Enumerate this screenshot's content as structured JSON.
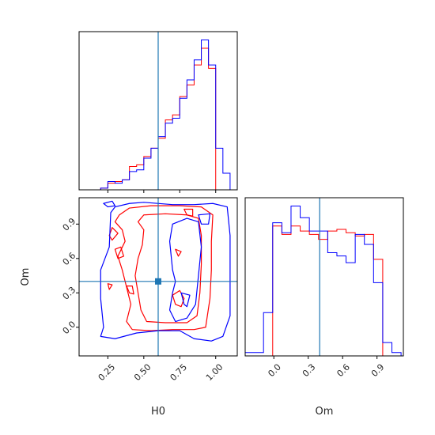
{
  "chart_data": {
    "type": "corner",
    "parameters": [
      "H0",
      "Om"
    ],
    "truths": {
      "H0": 0.6,
      "Om": 0.4,
      "color": "#1f77b4"
    },
    "series_colors": {
      "run_a": "#ff0000",
      "run_b": "#0000ff"
    },
    "axes": {
      "H0": {
        "range": [
          0.05,
          1.15
        ],
        "ticks": [
          0.25,
          0.5,
          0.75,
          1.0
        ],
        "tick_labels": [
          "0.25",
          "0.50",
          "0.75",
          "1.00"
        ],
        "xlabel": "H0"
      },
      "Om": {
        "range": [
          -0.25,
          1.13
        ],
        "ticks": [
          0.0,
          0.3,
          0.6,
          0.9
        ],
        "tick_labels": [
          "0.0",
          "0.3",
          "0.6",
          "0.9"
        ],
        "xlabel": "Om",
        "ylabel": "Om"
      }
    },
    "marginal_H0": {
      "bin_edges": [
        0.05,
        0.1,
        0.15,
        0.2,
        0.25,
        0.3,
        0.35,
        0.4,
        0.45,
        0.5,
        0.55,
        0.6,
        0.65,
        0.7,
        0.75,
        0.8,
        0.85,
        0.9,
        0.95,
        1.0,
        1.05,
        1.1,
        1.15
      ],
      "run_a": [
        0,
        0,
        0,
        0.01,
        0.04,
        0.05,
        0.06,
        0.14,
        0.15,
        0.2,
        0.25,
        0.31,
        0.42,
        0.45,
        0.56,
        0.63,
        0.75,
        0.85,
        0.73,
        0,
        0,
        0
      ],
      "run_b": [
        0,
        0,
        0,
        0.01,
        0.05,
        0.04,
        0.06,
        0.11,
        0.12,
        0.19,
        0.25,
        0.32,
        0.4,
        0.43,
        0.55,
        0.66,
        0.78,
        0.9,
        0.75,
        0.25,
        0.1,
        0
      ]
    },
    "marginal_Om": {
      "bin_edges": [
        -0.25,
        -0.17,
        -0.09,
        -0.01,
        0.07,
        0.15,
        0.23,
        0.31,
        0.39,
        0.47,
        0.55,
        0.63,
        0.71,
        0.79,
        0.87,
        0.95,
        1.03,
        1.11
      ],
      "run_a": [
        0,
        0,
        0,
        0.78,
        0.73,
        0.78,
        0.75,
        0.73,
        0.7,
        0.75,
        0.76,
        0.74,
        0.72,
        0.73,
        0.58,
        0,
        0
      ],
      "run_b": [
        0.02,
        0.02,
        0.26,
        0.8,
        0.74,
        0.9,
        0.83,
        0.75,
        0.75,
        0.62,
        0.6,
        0.56,
        0.73,
        0.67,
        0.44,
        0.08,
        0.02
      ]
    },
    "joint_contours": {
      "run_a": [
        [
          [
            0.35,
            0.85
          ],
          [
            0.3,
            0.92
          ],
          [
            0.33,
            0.98
          ],
          [
            0.4,
            1.04
          ],
          [
            0.55,
            1.06
          ],
          [
            0.75,
            1.06
          ],
          [
            0.9,
            1.05
          ],
          [
            0.98,
            0.98
          ],
          [
            0.97,
            0.75
          ],
          [
            0.97,
            0.5
          ],
          [
            0.96,
            0.25
          ],
          [
            0.93,
            0.0
          ],
          [
            0.85,
            -0.02
          ],
          [
            0.7,
            -0.02
          ],
          [
            0.55,
            -0.03
          ],
          [
            0.42,
            -0.02
          ],
          [
            0.38,
            0.05
          ],
          [
            0.41,
            0.2
          ],
          [
            0.38,
            0.35
          ],
          [
            0.35,
            0.5
          ],
          [
            0.32,
            0.62
          ],
          [
            0.37,
            0.75
          ],
          [
            0.35,
            0.85
          ]
        ],
        [
          [
            0.5,
            0.85
          ],
          [
            0.46,
            0.92
          ],
          [
            0.5,
            0.98
          ],
          [
            0.65,
            0.99
          ],
          [
            0.8,
            0.98
          ],
          [
            0.88,
            0.95
          ],
          [
            0.9,
            0.8
          ],
          [
            0.9,
            0.55
          ],
          [
            0.89,
            0.3
          ],
          [
            0.87,
            0.1
          ],
          [
            0.8,
            0.04
          ],
          [
            0.65,
            0.04
          ],
          [
            0.52,
            0.05
          ],
          [
            0.48,
            0.15
          ],
          [
            0.46,
            0.3
          ],
          [
            0.44,
            0.45
          ],
          [
            0.46,
            0.6
          ],
          [
            0.49,
            0.72
          ],
          [
            0.5,
            0.85
          ]
        ],
        [
          [
            0.72,
            0.2
          ],
          [
            0.7,
            0.28
          ],
          [
            0.75,
            0.32
          ],
          [
            0.78,
            0.25
          ],
          [
            0.76,
            0.18
          ],
          [
            0.72,
            0.2
          ]
        ],
        [
          [
            0.26,
            0.8
          ],
          [
            0.28,
            0.87
          ],
          [
            0.32,
            0.82
          ],
          [
            0.28,
            0.76
          ],
          [
            0.26,
            0.8
          ]
        ],
        [
          [
            0.32,
            0.6
          ],
          [
            0.3,
            0.68
          ],
          [
            0.34,
            0.7
          ],
          [
            0.36,
            0.62
          ],
          [
            0.32,
            0.6
          ]
        ],
        [
          [
            0.4,
            0.3
          ],
          [
            0.38,
            0.36
          ],
          [
            0.42,
            0.36
          ],
          [
            0.43,
            0.29
          ],
          [
            0.4,
            0.3
          ]
        ],
        [
          [
            0.26,
            0.33
          ],
          [
            0.25,
            0.38
          ],
          [
            0.28,
            0.37
          ],
          [
            0.26,
            0.33
          ]
        ],
        [
          [
            0.8,
            0.98
          ],
          [
            0.78,
            1.03
          ],
          [
            0.84,
            1.03
          ],
          [
            0.84,
            0.97
          ],
          [
            0.8,
            0.98
          ]
        ],
        [
          [
            0.74,
            0.62
          ],
          [
            0.72,
            0.68
          ],
          [
            0.76,
            0.66
          ],
          [
            0.74,
            0.62
          ]
        ]
      ],
      "run_b": [
        [
          [
            0.3,
            1.05
          ],
          [
            0.27,
            1.0
          ],
          [
            0.26,
            0.7
          ],
          [
            0.2,
            0.5
          ],
          [
            0.2,
            0.25
          ],
          [
            0.22,
            0.0
          ],
          [
            0.2,
            -0.08
          ],
          [
            0.3,
            -0.1
          ],
          [
            0.45,
            -0.05
          ],
          [
            0.6,
            -0.03
          ],
          [
            0.75,
            -0.03
          ],
          [
            0.85,
            -0.1
          ],
          [
            0.97,
            -0.12
          ],
          [
            1.05,
            -0.08
          ],
          [
            1.1,
            0.1
          ],
          [
            1.1,
            0.5
          ],
          [
            1.1,
            0.8
          ],
          [
            1.08,
            1.05
          ],
          [
            0.98,
            1.08
          ],
          [
            0.85,
            1.07
          ],
          [
            0.7,
            1.07
          ],
          [
            0.5,
            1.09
          ],
          [
            0.4,
            1.08
          ],
          [
            0.3,
            1.05
          ]
        ],
        [
          [
            0.7,
            0.5
          ],
          [
            0.68,
            0.75
          ],
          [
            0.7,
            0.9
          ],
          [
            0.8,
            0.95
          ],
          [
            0.88,
            0.92
          ],
          [
            0.9,
            0.7
          ],
          [
            0.88,
            0.45
          ],
          [
            0.86,
            0.2
          ],
          [
            0.8,
            0.08
          ],
          [
            0.72,
            0.05
          ],
          [
            0.68,
            0.15
          ],
          [
            0.7,
            0.3
          ],
          [
            0.72,
            0.4
          ],
          [
            0.7,
            0.5
          ]
        ],
        [
          [
            0.25,
            1.05
          ],
          [
            0.22,
            1.08
          ],
          [
            0.28,
            1.1
          ],
          [
            0.3,
            1.06
          ],
          [
            0.25,
            1.05
          ]
        ],
        [
          [
            0.9,
            0.9
          ],
          [
            0.88,
            0.98
          ],
          [
            0.96,
            0.99
          ],
          [
            0.95,
            0.9
          ],
          [
            0.9,
            0.9
          ]
        ],
        [
          [
            0.78,
            0.2
          ],
          [
            0.76,
            0.3
          ],
          [
            0.82,
            0.28
          ],
          [
            0.8,
            0.18
          ],
          [
            0.78,
            0.2
          ]
        ]
      ]
    }
  }
}
